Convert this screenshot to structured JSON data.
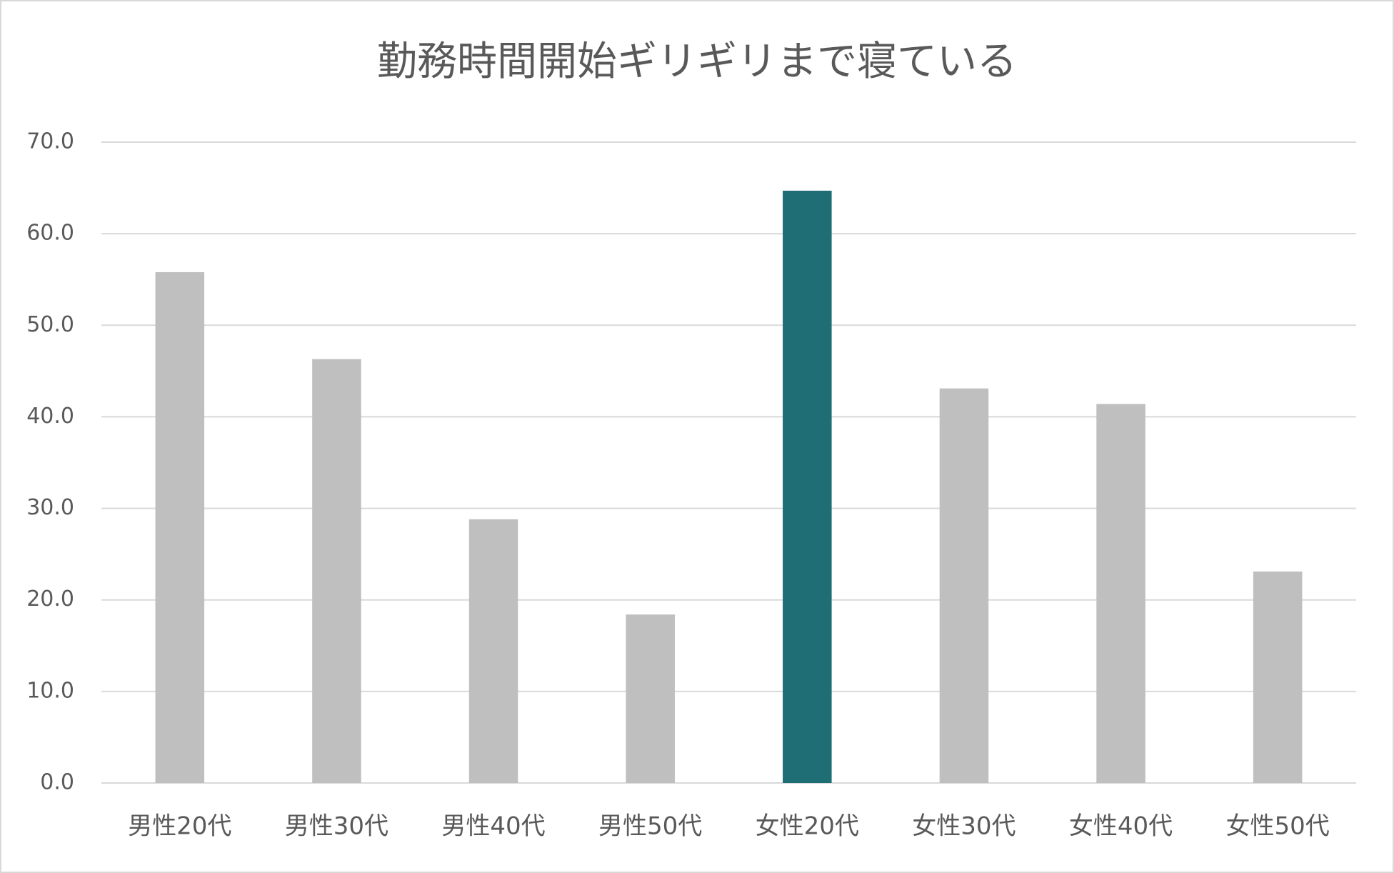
{
  "chart_data": {
    "type": "bar",
    "title": "勤務時間開始ギリギリまで寝ている",
    "categories": [
      "男性20代",
      "男性30代",
      "男性40代",
      "男性50代",
      "女性20代",
      "女性30代",
      "女性40代",
      "女性50代"
    ],
    "values": [
      55.8,
      46.3,
      28.8,
      18.4,
      64.7,
      43.1,
      41.4,
      23.1
    ],
    "colors": [
      "#bfbfbf",
      "#bfbfbf",
      "#bfbfbf",
      "#bfbfbf",
      "#1f6e75",
      "#bfbfbf",
      "#bfbfbf",
      "#bfbfbf"
    ],
    "ylim": [
      0,
      70
    ],
    "yticks": [
      {
        "value": 0,
        "label": "0.0"
      },
      {
        "value": 10,
        "label": "10.0"
      },
      {
        "value": 20,
        "label": "20.0"
      },
      {
        "value": 30,
        "label": "30.0"
      },
      {
        "value": 40,
        "label": "40.0"
      },
      {
        "value": 50,
        "label": "50.0"
      },
      {
        "value": 60,
        "label": "60.0"
      },
      {
        "value": 70,
        "label": "70.0"
      }
    ],
    "grid": true
  }
}
